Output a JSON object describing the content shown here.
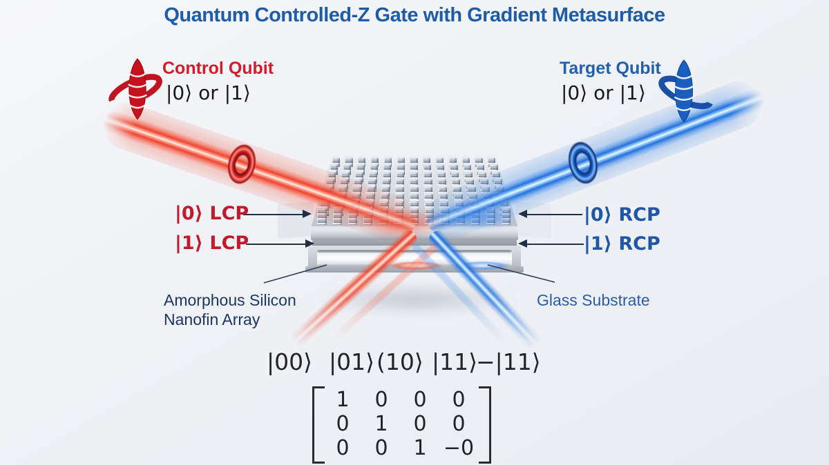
{
  "title": "Quantum Controlled-Z Gate with Gradient Metasurface",
  "control_qubit": {
    "label": "Control Qubit",
    "state": "|0⟩ or |1⟩"
  },
  "target_qubit": {
    "label": "Target Qubit",
    "state": "|0⟩ or |1⟩"
  },
  "ports": {
    "left": [
      {
        "label": "|0⟩ LCP"
      },
      {
        "label": "|1⟩ LCP"
      }
    ],
    "right": [
      {
        "label": "|0⟩ RCP"
      },
      {
        "label": "|1⟩ RCP"
      }
    ]
  },
  "callouts": {
    "nanofin_line1": "Amorphous Silicon",
    "nanofin_line2": "Nanofin Array",
    "substrate": "Glass Substrate"
  },
  "basis_states": {
    "s00": "|00⟩",
    "s01": "|01⟩",
    "s10": "(10⟩",
    "s11": "|11⟩",
    "s11m": "−|11⟩"
  },
  "matrix": {
    "rows": [
      [
        "1",
        "0",
        "0",
        "0"
      ],
      [
        "0",
        "1",
        "0",
        "0"
      ],
      [
        "0",
        "0",
        "1",
        "−0"
      ]
    ]
  },
  "icons": {
    "control": "red-spin-qubit-icon",
    "target": "blue-spin-qubit-icon"
  },
  "colors": {
    "title": "#1d5ca6",
    "control_red": "#d21c2a",
    "target_blue": "#2360ac",
    "lcp_red": "#c01b2a",
    "rcp_blue": "#1f57a6",
    "beam_red": "#ec3a24",
    "beam_blue": "#1969d7",
    "callout_navy": "#1c3660",
    "callout_blue": "#2a5ca8"
  }
}
